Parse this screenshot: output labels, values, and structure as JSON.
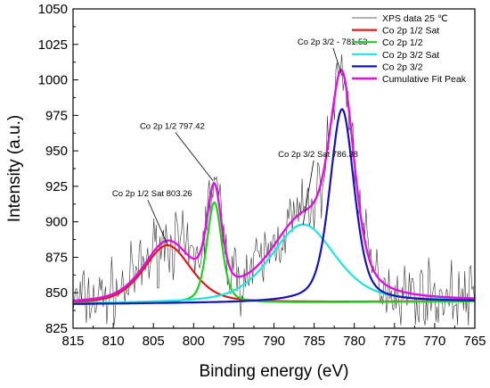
{
  "chart_data": {
    "type": "line",
    "title": "",
    "xlabel": "Binding energy (eV)",
    "ylabel": "Intensity (a.u.)",
    "xlim": [
      815,
      765
    ],
    "ylim": [
      825,
      1050
    ],
    "x_reversed": true,
    "xticks": [
      815,
      810,
      805,
      800,
      795,
      790,
      785,
      780,
      775,
      770,
      765
    ],
    "yticks": [
      825,
      850,
      875,
      900,
      925,
      950,
      975,
      1000,
      1025,
      1050
    ],
    "baseline": {
      "at_815": 842,
      "at_765": 844
    },
    "raw_data": {
      "name": "XPS data 25 ℃",
      "color": "#333333",
      "x_step": 0.15,
      "noise_amplitude": 20
    },
    "components": [
      {
        "name": "Co 2p 1/2 Sat",
        "color": "#e0181f",
        "center": 803.26,
        "height": 41,
        "fwhm": 7.0
      },
      {
        "name": "Co 2p 1/2",
        "color": "#1fd11f",
        "center": 797.42,
        "height": 71,
        "fwhm": 2.2
      },
      {
        "name": "Co 2p 3/2 Sat",
        "color": "#1fe3e3",
        "center": 786.38,
        "height": 55,
        "fwhm": 9.5
      },
      {
        "name": "Co 2p 3/2",
        "color": "#1414b4",
        "center": 781.53,
        "height": 136,
        "fwhm": 3.6
      }
    ],
    "cumulative": {
      "name": "Cumulative Fit Peak",
      "color": "#e012e0"
    },
    "legend_position": "top-right",
    "grid": false,
    "annotations": [
      {
        "text": "Co 2p 1/2 Sat 803.26",
        "x": 803.26,
        "y": 884
      },
      {
        "text": "Co 2p 1/2 797.42",
        "x": 797.6,
        "y": 929
      },
      {
        "text": "Co 2p 3/2 Sat 786.38",
        "x": 786.38,
        "y": 898
      },
      {
        "text": "Co 2p 3/2 - 781.53",
        "x": 781.53,
        "y": 1003
      }
    ]
  }
}
